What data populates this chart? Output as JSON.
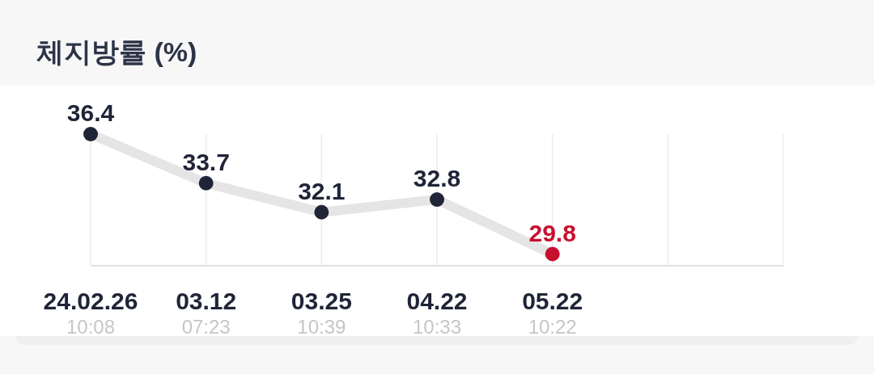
{
  "chart_data": {
    "type": "line",
    "title": "체지방률 (%)",
    "categories": [
      "24.02.26\n10:08",
      "03.12\n07:23",
      "03.25\n10:39",
      "04.22\n10:33",
      "05.22\n10:22",
      null,
      null
    ],
    "values": [
      36.4,
      33.7,
      32.1,
      32.8,
      29.8,
      null,
      null
    ],
    "color": "#e5e5e5",
    "colors": [
      "#1f2437",
      "#1f2437",
      "#1f2437",
      "#1f2437",
      "#c8102e",
      null,
      null
    ],
    "marker": "circle",
    "line_style": "solid",
    "data_labels": true,
    "ylim": [
      29.2,
      36.4
    ],
    "grid": "x"
  }
}
